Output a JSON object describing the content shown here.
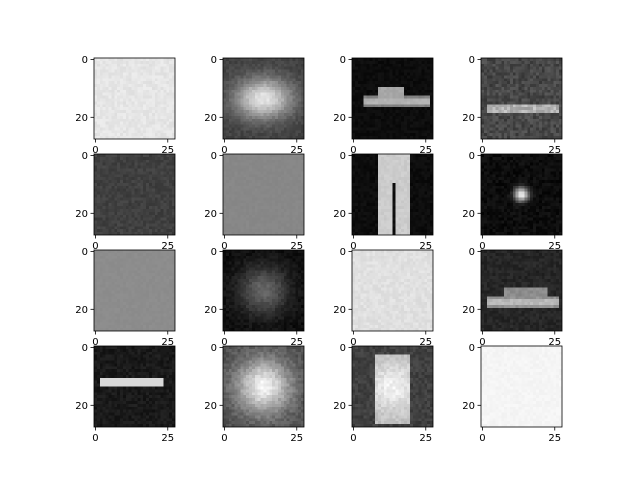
{
  "chart_data": {
    "type": "heatmap",
    "grid": {
      "rows": 4,
      "cols": 4
    },
    "image_size": 28,
    "xticks": [
      0,
      25
    ],
    "yticks": [
      0,
      20
    ],
    "colormap": "gray",
    "panels": [
      {
        "row": 0,
        "col": 0,
        "pattern": "uniform-light",
        "mean_intensity": 0.9,
        "xtick_labels": [
          "0",
          "25"
        ],
        "ytick_labels": [
          "0",
          "20"
        ]
      },
      {
        "row": 0,
        "col": 1,
        "pattern": "center-blob",
        "mean_intensity": 0.6,
        "xtick_labels": [
          "0",
          "25"
        ],
        "ytick_labels": [
          "0",
          "20"
        ]
      },
      {
        "row": 0,
        "col": 2,
        "pattern": "shoe",
        "mean_intensity": 0.08,
        "xtick_labels": [
          "0",
          "25"
        ],
        "ytick_labels": [
          "0",
          "20"
        ]
      },
      {
        "row": 0,
        "col": 3,
        "pattern": "noisy-stripe",
        "mean_intensity": 0.3,
        "xtick_labels": [
          "0",
          "25"
        ],
        "ytick_labels": [
          "0",
          "20"
        ]
      },
      {
        "row": 1,
        "col": 0,
        "pattern": "uniform-dark",
        "mean_intensity": 0.25,
        "xtick_labels": [
          "0",
          "25"
        ],
        "ytick_labels": [
          "0",
          "20"
        ]
      },
      {
        "row": 1,
        "col": 1,
        "pattern": "uniform-gray",
        "mean_intensity": 0.53,
        "xtick_labels": [
          "0",
          "25"
        ],
        "ytick_labels": [
          "0",
          "20"
        ]
      },
      {
        "row": 1,
        "col": 2,
        "pattern": "trousers",
        "mean_intensity": 0.06,
        "xtick_labels": [
          "0",
          "25"
        ],
        "ytick_labels": [
          "0",
          "20"
        ]
      },
      {
        "row": 1,
        "col": 3,
        "pattern": "center-spot",
        "mean_intensity": 0.08,
        "xtick_labels": [
          "0",
          "25"
        ],
        "ytick_labels": [
          "0",
          "20"
        ]
      },
      {
        "row": 2,
        "col": 0,
        "pattern": "uniform-gray",
        "mean_intensity": 0.55,
        "xtick_labels": [
          "0",
          "25"
        ],
        "ytick_labels": [
          "0",
          "20"
        ]
      },
      {
        "row": 2,
        "col": 1,
        "pattern": "dark-vignette",
        "mean_intensity": 0.25,
        "xtick_labels": [
          "0",
          "25"
        ],
        "ytick_labels": [
          "0",
          "20"
        ]
      },
      {
        "row": 2,
        "col": 2,
        "pattern": "uniform-light",
        "mean_intensity": 0.88,
        "xtick_labels": [
          "0",
          "25"
        ],
        "ytick_labels": [
          "0",
          "20"
        ]
      },
      {
        "row": 2,
        "col": 3,
        "pattern": "shoe-wide",
        "mean_intensity": 0.15,
        "xtick_labels": [
          "0",
          "25"
        ],
        "ytick_labels": [
          "0",
          "20"
        ]
      },
      {
        "row": 3,
        "col": 0,
        "pattern": "thin-stripe",
        "mean_intensity": 0.12,
        "xtick_labels": [
          "0",
          "25"
        ],
        "ytick_labels": [
          "0",
          "20"
        ]
      },
      {
        "row": 3,
        "col": 1,
        "pattern": "center-blob-bright",
        "mean_intensity": 0.65,
        "xtick_labels": [
          "0",
          "25"
        ],
        "ytick_labels": [
          "0",
          "20"
        ]
      },
      {
        "row": 3,
        "col": 2,
        "pattern": "shirt",
        "mean_intensity": 0.45,
        "xtick_labels": [
          "0",
          "25"
        ],
        "ytick_labels": [
          "0",
          "20"
        ]
      },
      {
        "row": 3,
        "col": 3,
        "pattern": "uniform-white",
        "mean_intensity": 0.96,
        "xtick_labels": [
          "0",
          "25"
        ],
        "ytick_labels": [
          "0",
          "20"
        ]
      }
    ]
  }
}
